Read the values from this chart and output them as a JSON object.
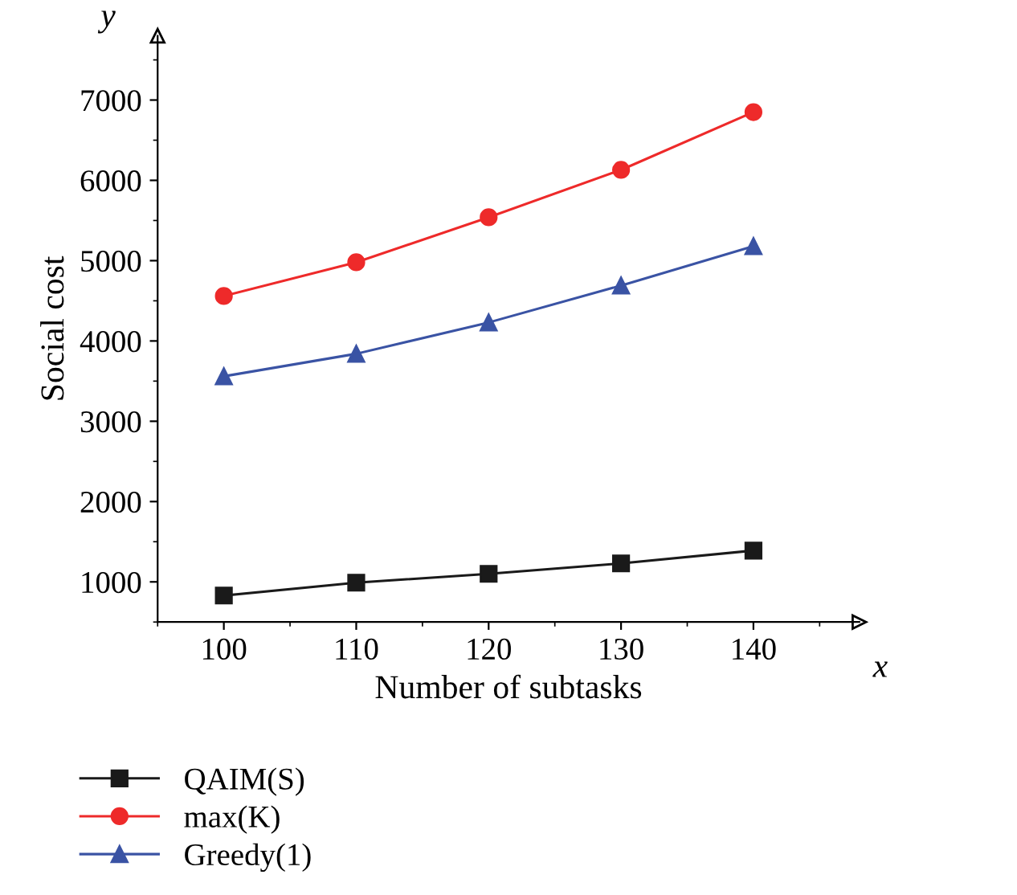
{
  "chart_data": {
    "type": "line",
    "xlabel": "Number of subtasks",
    "ylabel": "Social cost",
    "annotations": [
      "y",
      "x"
    ],
    "x": [
      100,
      110,
      120,
      130,
      140
    ],
    "series": [
      {
        "name": "QAIM(S)",
        "color": "#1a1a1a",
        "marker": "square",
        "values": [
          830,
          990,
          1100,
          1230,
          1390
        ]
      },
      {
        "name": "max(K)",
        "color": "#ee2a2a",
        "marker": "circle",
        "values": [
          4560,
          4980,
          5540,
          6130,
          6850
        ]
      },
      {
        "name": "Greedy(1)",
        "color": "#3a53a4",
        "marker": "triangle",
        "values": [
          3560,
          3840,
          4230,
          4690,
          5180
        ]
      }
    ],
    "xlim": [
      95,
      148
    ],
    "xticks": [
      100,
      110,
      120,
      130,
      140
    ],
    "ylim": [
      500,
      7800
    ],
    "yticks": [
      1000,
      2000,
      3000,
      4000,
      5000,
      6000,
      7000
    ],
    "grid": false,
    "legend": "bottom",
    "line_style": "solid"
  }
}
